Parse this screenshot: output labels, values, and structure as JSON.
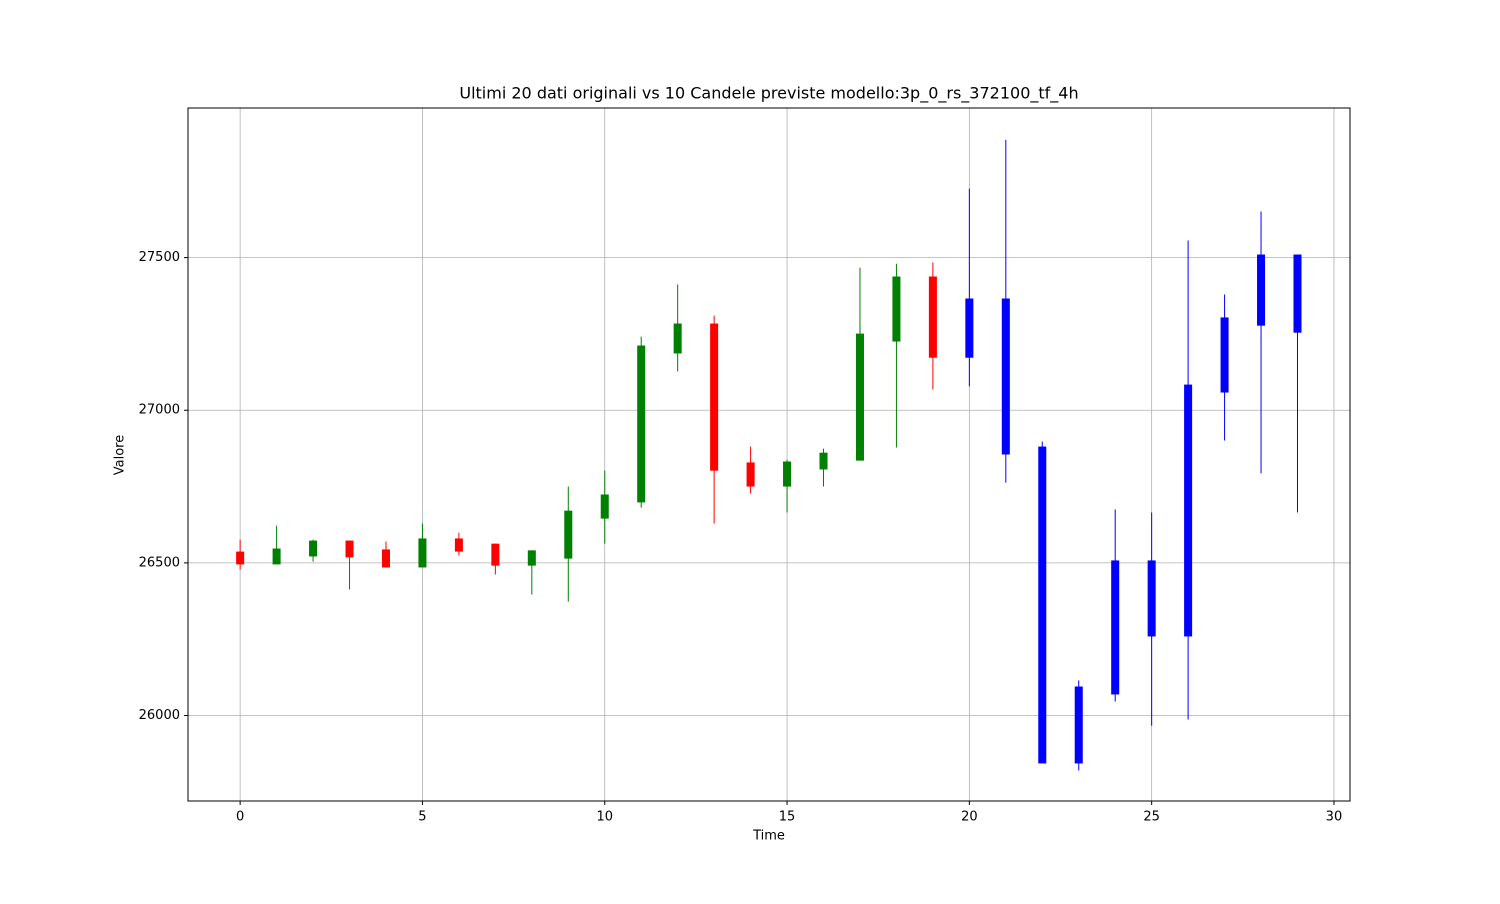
{
  "chart_data": {
    "type": "candlestick",
    "title": "Ultimi 20 dati originali vs 10 Candele previste modello:3p_0_rs_372100_tf_4h",
    "x_label": "Time",
    "y_label": "Valore",
    "x": [
      0,
      1,
      2,
      3,
      4,
      5,
      6,
      7,
      8,
      9,
      10,
      11,
      12,
      13,
      14,
      15,
      16,
      17,
      18,
      19,
      20,
      21,
      22,
      23,
      24,
      25,
      26,
      27,
      28,
      29
    ],
    "open": [
      26537,
      26495,
      26521,
      26573,
      26544,
      26485,
      26580,
      26563,
      26491,
      26514,
      26645,
      26698,
      27186,
      27284,
      26829,
      26750,
      26806,
      26835,
      27225,
      27438,
      27172,
      27366,
      26881,
      25843,
      26069,
      26508,
      26259,
      27058,
      27277,
      27510
    ],
    "high": [
      26576,
      26622,
      26576,
      26573,
      26570,
      26629,
      26599,
      26563,
      26541,
      26750,
      26802,
      27241,
      27412,
      27310,
      26881,
      26838,
      26874,
      27467,
      27480,
      27484,
      27726,
      27886,
      26897,
      26115,
      26675,
      26665,
      27556,
      27379,
      27651,
      27510
    ],
    "low": [
      26478,
      26495,
      26504,
      26413,
      26485,
      26485,
      26524,
      26462,
      26396,
      26373,
      26563,
      26681,
      27127,
      26629,
      26727,
      26665,
      26750,
      26835,
      26878,
      27068,
      27078,
      26763,
      25843,
      25820,
      26046,
      25967,
      25987,
      26901,
      26793,
      26665
    ],
    "close": [
      26495,
      26547,
      26573,
      26518,
      26485,
      26580,
      26537,
      26491,
      26541,
      26671,
      26724,
      27212,
      27284,
      26802,
      26750,
      26832,
      26861,
      27251,
      27438,
      27172,
      27366,
      26855,
      25843,
      26095,
      26508,
      26259,
      27084,
      27304,
      27510,
      27254
    ],
    "colors": [
      "red",
      "green",
      "green",
      "red",
      "red",
      "green",
      "red",
      "red",
      "green",
      "green",
      "green",
      "green",
      "green",
      "red",
      "red",
      "green",
      "green",
      "green",
      "green",
      "red",
      "blue",
      "blue",
      "blue",
      "blue",
      "blue",
      "blue",
      "blue",
      "blue",
      "blue",
      "blue"
    ],
    "xlim": [
      -1.43,
      30.44
    ],
    "ylim": [
      25720,
      27990
    ],
    "xticks": [
      0,
      5,
      10,
      15,
      20,
      25,
      30
    ],
    "yticks": [
      26000,
      26500,
      27000,
      27500
    ],
    "grid": true
  }
}
